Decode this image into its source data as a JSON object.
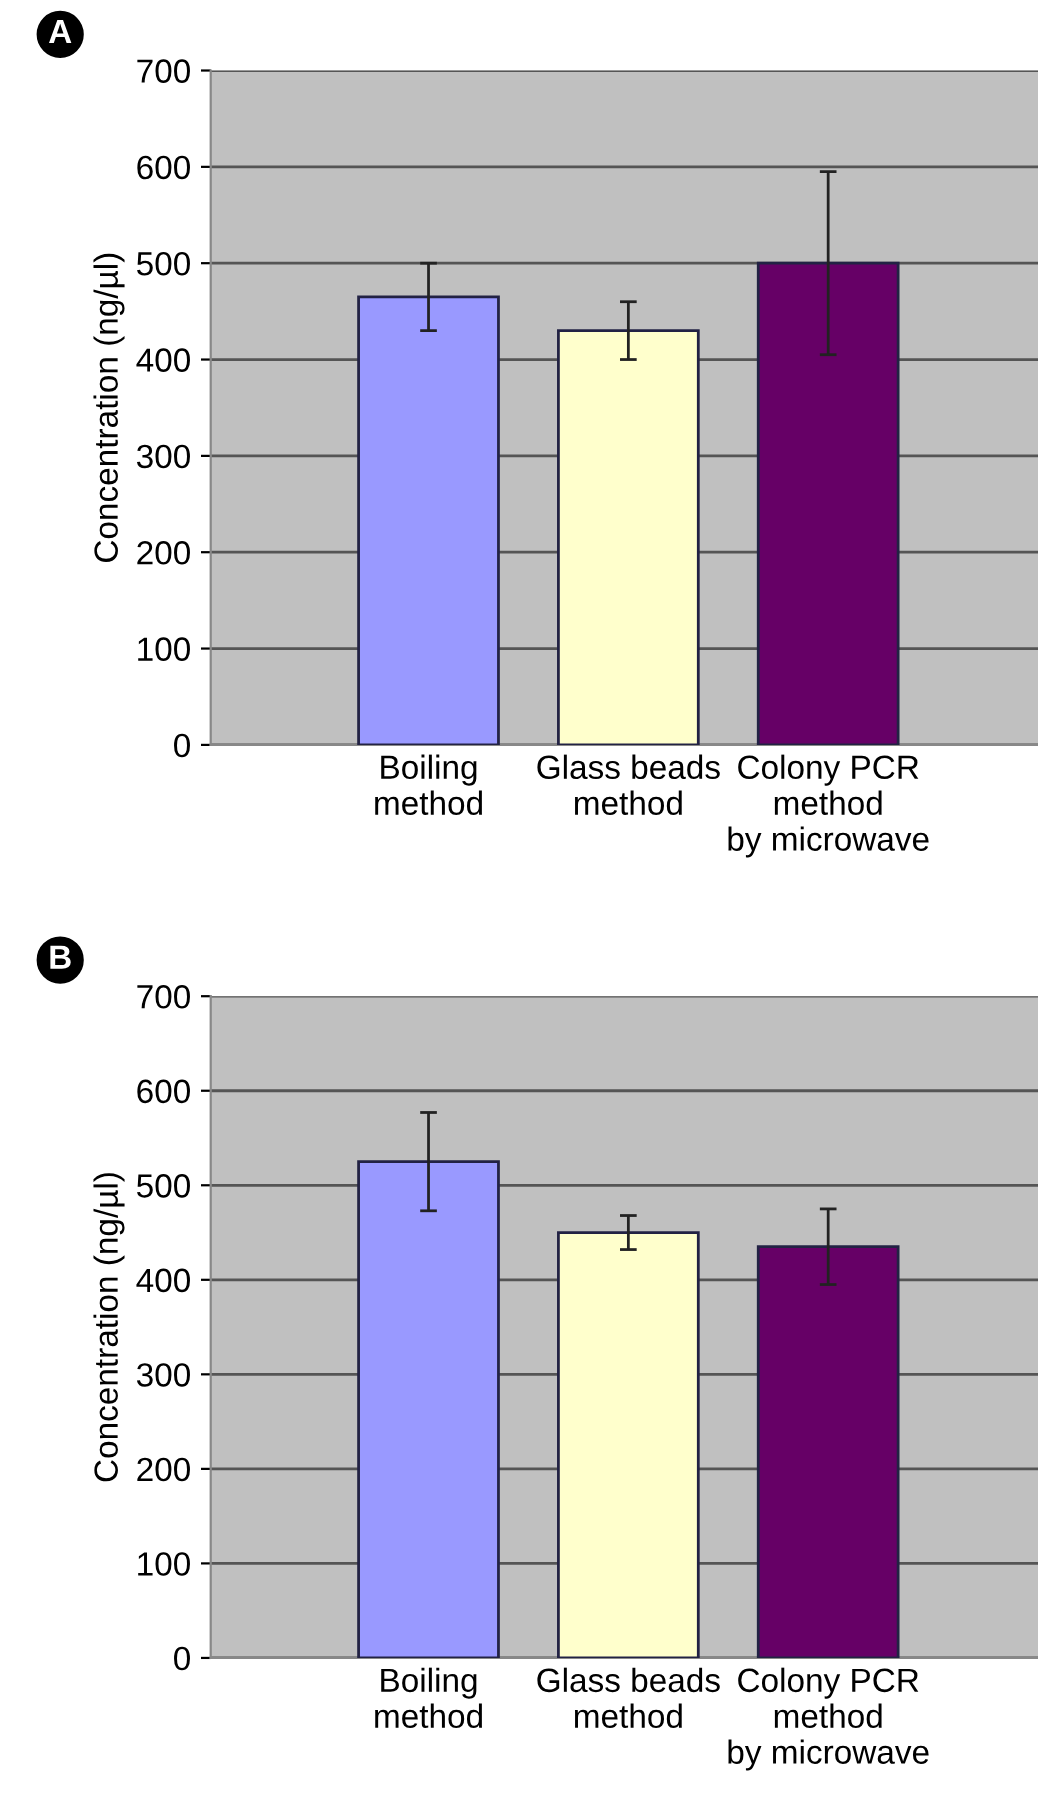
{
  "chart_data": [
    {
      "type": "bar",
      "annotations": [
        "A"
      ],
      "ylabel": "Concentration (ng/µl)",
      "categories": [
        "Boiling\nmethod",
        "Glass beads\nmethod",
        "Colony PCR\nmethod\nby microwave"
      ],
      "values": [
        465,
        430,
        500
      ],
      "errors": [
        35,
        30,
        95
      ],
      "colors": [
        "#9999ff",
        "#ffffcc",
        "#660066"
      ],
      "ylim": [
        0,
        700
      ],
      "yticks": [
        0,
        100,
        200,
        300,
        400,
        500,
        600,
        700
      ],
      "grid": "y",
      "legend": false
    },
    {
      "type": "bar",
      "annotations": [
        "B"
      ],
      "ylabel": "Concentration (ng/µl)",
      "categories": [
        "Boiling\nmethod",
        "Glass beads\nmethod",
        "Colony PCR\nmethod\nby microwave"
      ],
      "values": [
        525,
        450,
        435
      ],
      "errors": [
        52,
        18,
        40
      ],
      "colors": [
        "#9999ff",
        "#ffffcc",
        "#660066"
      ],
      "ylim": [
        0,
        700
      ],
      "yticks": [
        0,
        100,
        200,
        300,
        400,
        500,
        600,
        700
      ],
      "grid": "y",
      "legend": false
    }
  ]
}
